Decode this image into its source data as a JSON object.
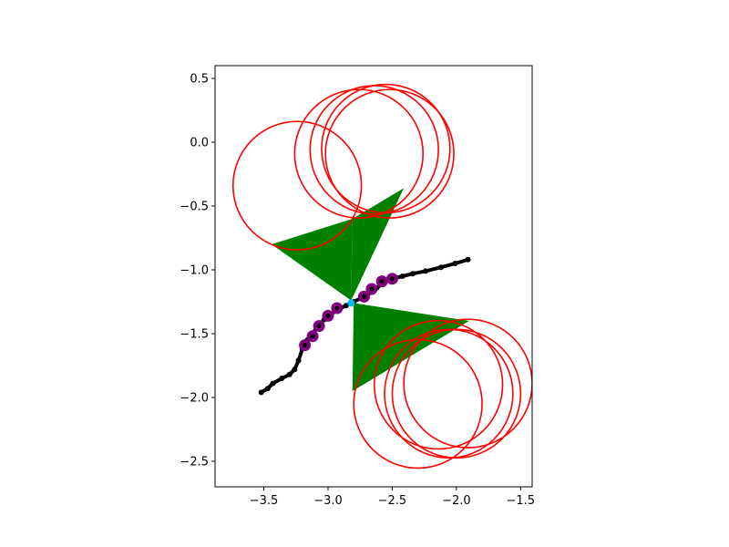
{
  "chart_data": {
    "type": "scatter",
    "title": "",
    "xlabel": "",
    "ylabel": "",
    "xlim": [
      -3.88,
      -1.41
    ],
    "ylim": [
      -2.7,
      0.6
    ],
    "grid": false,
    "aspect": "equal",
    "x_ticks": [
      -3.5,
      -3.0,
      -2.5,
      -2.0,
      -1.5
    ],
    "x_tick_labels": [
      "−3.5",
      "−3.0",
      "−2.5",
      "−2.0",
      "−1.5"
    ],
    "y_ticks": [
      0.5,
      0.0,
      -0.5,
      -1.0,
      -1.5,
      -2.0,
      -2.5
    ],
    "y_tick_labels": [
      "0.5",
      "0.0",
      "−0.5",
      "−1.0",
      "−1.5",
      "−2.0",
      "−2.5"
    ],
    "colors": {
      "trajectory": "#000000",
      "markers": "#800080",
      "circles": "#ff0000",
      "cones": "#008000",
      "center": "#00bfff"
    },
    "trajectory": [
      [
        -3.52,
        -1.96
      ],
      [
        -3.47,
        -1.93
      ],
      [
        -3.43,
        -1.89
      ],
      [
        -3.36,
        -1.85
      ],
      [
        -3.3,
        -1.82
      ],
      [
        -3.26,
        -1.78
      ],
      [
        -3.23,
        -1.71
      ],
      [
        -3.2,
        -1.62
      ],
      [
        -3.16,
        -1.55
      ],
      [
        -3.12,
        -1.5
      ],
      [
        -3.08,
        -1.44
      ],
      [
        -3.03,
        -1.39
      ],
      [
        -2.98,
        -1.35
      ],
      [
        -2.92,
        -1.31
      ],
      [
        -2.86,
        -1.28
      ],
      [
        -2.8,
        -1.25
      ],
      [
        -2.74,
        -1.22
      ],
      [
        -2.68,
        -1.18
      ],
      [
        -2.62,
        -1.14
      ],
      [
        -2.56,
        -1.1
      ],
      [
        -2.5,
        -1.07
      ],
      [
        -2.42,
        -1.05
      ],
      [
        -2.34,
        -1.03
      ],
      [
        -2.24,
        -1.01
      ],
      [
        -2.12,
        -0.98
      ],
      [
        -2.01,
        -0.95
      ],
      [
        -1.91,
        -0.92
      ]
    ],
    "markers": [
      [
        -3.18,
        -1.59
      ],
      [
        -3.12,
        -1.52
      ],
      [
        -3.07,
        -1.44
      ],
      [
        -3.0,
        -1.36
      ],
      [
        -2.93,
        -1.3
      ],
      [
        -2.72,
        -1.21
      ],
      [
        -2.66,
        -1.15
      ],
      [
        -2.58,
        -1.09
      ],
      [
        -2.5,
        -1.07
      ]
    ],
    "circles_upper": [
      {
        "cx": -3.24,
        "cy": -0.34,
        "r": 0.5
      },
      {
        "cx": -2.76,
        "cy": -0.09,
        "r": 0.5
      },
      {
        "cx": -2.64,
        "cy": -0.06,
        "r": 0.5
      },
      {
        "cx": -2.55,
        "cy": -0.05,
        "r": 0.5
      },
      {
        "cx": -2.52,
        "cy": -0.09,
        "r": 0.5
      }
    ],
    "circles_lower": [
      {
        "cx": -2.3,
        "cy": -2.05,
        "r": 0.5
      },
      {
        "cx": -2.14,
        "cy": -1.9,
        "r": 0.5
      },
      {
        "cx": -2.06,
        "cy": -1.97,
        "r": 0.5
      },
      {
        "cx": -2.0,
        "cy": -1.97,
        "r": 0.5
      },
      {
        "cx": -1.91,
        "cy": -1.89,
        "r": 0.5
      }
    ],
    "center_point": [
      -2.82,
      -1.26
    ],
    "cones": [
      {
        "apex": [
          -2.82,
          -1.24
        ],
        "edges": [
          [
            -3.44,
            -0.8
          ],
          [
            -2.81,
            -0.6
          ]
        ]
      },
      {
        "apex": [
          -2.82,
          -1.24
        ],
        "edges": [
          [
            -2.81,
            -0.6
          ],
          [
            -2.41,
            -0.36
          ]
        ]
      },
      {
        "apex": [
          -2.8,
          -1.26
        ],
        "edges": [
          [
            -2.81,
            -1.95
          ],
          [
            -1.9,
            -1.4
          ]
        ]
      }
    ]
  }
}
